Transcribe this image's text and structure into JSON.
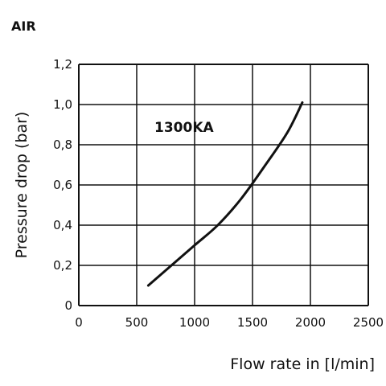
{
  "chart_data": {
    "type": "line",
    "title": "AIR",
    "xlabel": "Flow rate in [l/min]",
    "ylabel": "Pressure drop (bar)",
    "xlim": [
      0,
      2500
    ],
    "ylim": [
      0,
      1.2
    ],
    "grid": true,
    "x_ticks": [
      "0",
      "500",
      "1000",
      "1500",
      "2000",
      "2500"
    ],
    "y_ticks": [
      "0",
      "0,2",
      "0,4",
      "0,6",
      "0,8",
      "1,0",
      "1,2"
    ],
    "series": [
      {
        "name": "1300KA",
        "x": [
          600,
          800,
          1000,
          1200,
          1400,
          1600,
          1800,
          1930
        ],
        "y": [
          0.1,
          0.2,
          0.3,
          0.4,
          0.53,
          0.69,
          0.86,
          1.01
        ]
      }
    ],
    "colors": {
      "line": "#111111",
      "grid": "#111111",
      "background": "#ffffff"
    }
  }
}
